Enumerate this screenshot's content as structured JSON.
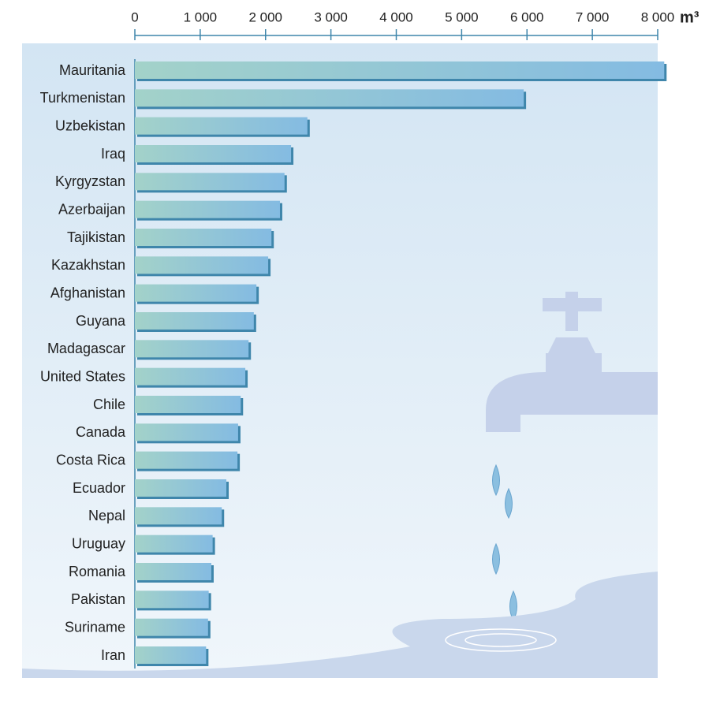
{
  "chart_data": {
    "type": "bar",
    "orientation": "horizontal",
    "unit": "m³",
    "categories": [
      "Mauritania",
      "Turkmenistan",
      "Uzbekistan",
      "Iraq",
      "Kyrgyzstan",
      "Azerbaijan",
      "Tajikistan",
      "Kazakhstan",
      "Afghanistan",
      "Guyana",
      "Madagascar",
      "United States",
      "Chile",
      "Canada",
      "Costa Rica",
      "Ecuador",
      "Nepal",
      "Uruguay",
      "Romania",
      "Pakistan",
      "Suriname",
      "Iran"
    ],
    "values": [
      8100,
      5950,
      2640,
      2390,
      2290,
      2220,
      2090,
      2040,
      1860,
      1820,
      1740,
      1690,
      1620,
      1580,
      1570,
      1400,
      1330,
      1190,
      1170,
      1130,
      1120,
      1090
    ],
    "xlim": [
      0,
      8000
    ],
    "xticks": [
      0,
      {
        "value": 1000,
        "label": "1 000"
      },
      {
        "value": 2000,
        "label": "2 000"
      },
      {
        "value": 3000,
        "label": "3 000"
      },
      {
        "value": 4000,
        "label": "4 000"
      },
      {
        "value": 5000,
        "label": "5 000"
      },
      {
        "value": 6000,
        "label": "6 000"
      },
      {
        "value": 7000,
        "label": "7 000"
      },
      {
        "value": 8000,
        "label": "8 000"
      }
    ],
    "color_start": "#a3d2c9",
    "color_end": "#84bbe2",
    "shadow_color": "#3f86ab"
  }
}
